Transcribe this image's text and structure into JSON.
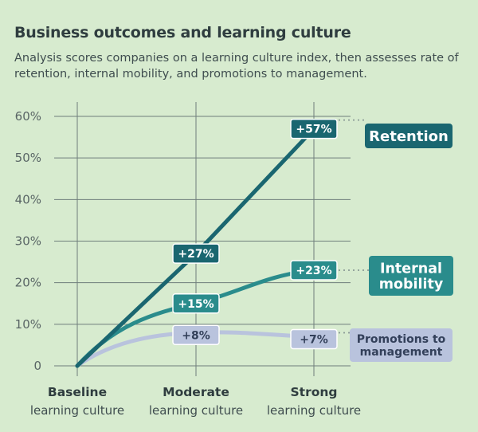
{
  "chart_data": {
    "type": "line",
    "title": "Business outcomes and learning culture",
    "subtitle": "Analysis scores companies on a learning culture index, then assesses rate of retention, internal mobility, and promotions to management.",
    "categories": [
      {
        "main": "Baseline",
        "sub": "learning culture"
      },
      {
        "main": "Moderate",
        "sub": "learning culture"
      },
      {
        "main": "Strong",
        "sub": "learning culture"
      }
    ],
    "ylim": [
      0,
      60
    ],
    "yticks": [
      {
        "value": 0,
        "label": "0"
      },
      {
        "value": 10,
        "label": "10%"
      },
      {
        "value": 20,
        "label": "20%"
      },
      {
        "value": 30,
        "label": "30%"
      },
      {
        "value": 40,
        "label": "40%"
      },
      {
        "value": 50,
        "label": "50%"
      },
      {
        "value": 60,
        "label": "60%"
      }
    ],
    "grid": true,
    "legend_position": "right",
    "series": [
      {
        "key": "retention",
        "name": "Retention",
        "values": [
          0,
          27,
          57
        ],
        "labels": [
          "",
          "+27%",
          "+57%"
        ],
        "color": "#1a6670",
        "label_text_color": "#ffffff"
      },
      {
        "key": "mobility",
        "name": "Internal mobility",
        "values": [
          0,
          15,
          23
        ],
        "labels": [
          "",
          "+15%",
          "+23%"
        ],
        "color": "#2a8c8c",
        "label_text_color": "#ffffff"
      },
      {
        "key": "promotions",
        "name": "Promotions to management",
        "values": [
          0,
          8,
          7
        ],
        "labels": [
          "",
          "+8%",
          "+7%"
        ],
        "color": "#b9c3dd",
        "label_text_color": "#33405a"
      }
    ]
  }
}
